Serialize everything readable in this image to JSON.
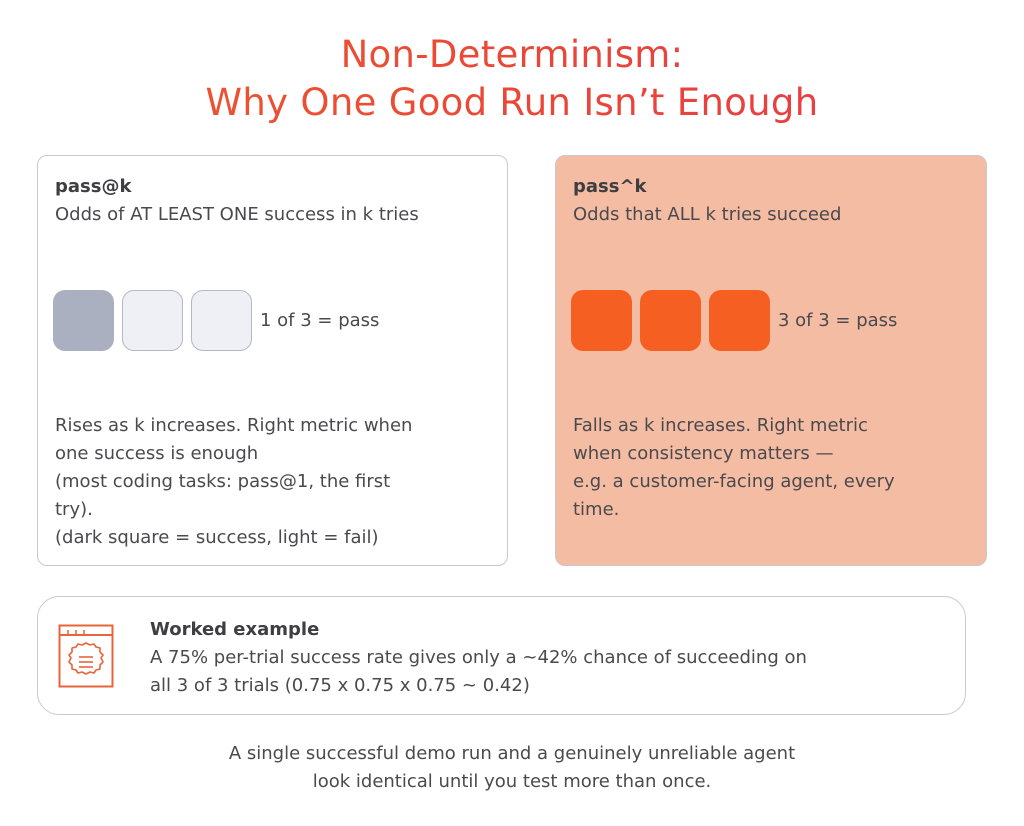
{
  "title": {
    "line1": "Non-Determinism:",
    "line2": "Why One Good Run Isn’t Enough"
  },
  "left_card": {
    "title": "pass@k",
    "subtitle": "Odds of AT LEAST ONE success in k tries",
    "squares": [
      "success",
      "fail",
      "fail"
    ],
    "caption": "1 of 3 = pass",
    "description": [
      "Rises as k increases. Right metric when",
      "one success is enough",
      "(most coding tasks: pass@1, the first",
      "try).",
      "(dark square = success, light = fail)"
    ]
  },
  "right_card": {
    "title": "pass^k",
    "subtitle": "Odds that ALL k tries succeed",
    "squares": [
      "success",
      "success",
      "success"
    ],
    "caption": "3 of 3 = pass",
    "description": [
      "Falls as k increases. Right metric",
      "when consistency matters —",
      "e.g. a customer-facing agent, every",
      "time."
    ]
  },
  "example": {
    "icon": "document-list-icon",
    "title": "Worked example",
    "body": [
      "A 75% per-trial success rate gives only a ~42% chance of succeeding on",
      "all 3 of 3 trials (0.75 x 0.75 x 0.75 ~ 0.42)"
    ]
  },
  "footer": [
    "A single successful demo run and a genuinely unreliable agent",
    "look identical until you test more than once."
  ],
  "colors": {
    "title_start": "#ee5a2c",
    "title_end": "#e33a4d",
    "success_dark": "#abb0c1",
    "fail_light": "#eef0f5",
    "success_orange": "#f65f22",
    "right_card_bg": "#f3bca3",
    "icon_orange": "#e8643a"
  }
}
